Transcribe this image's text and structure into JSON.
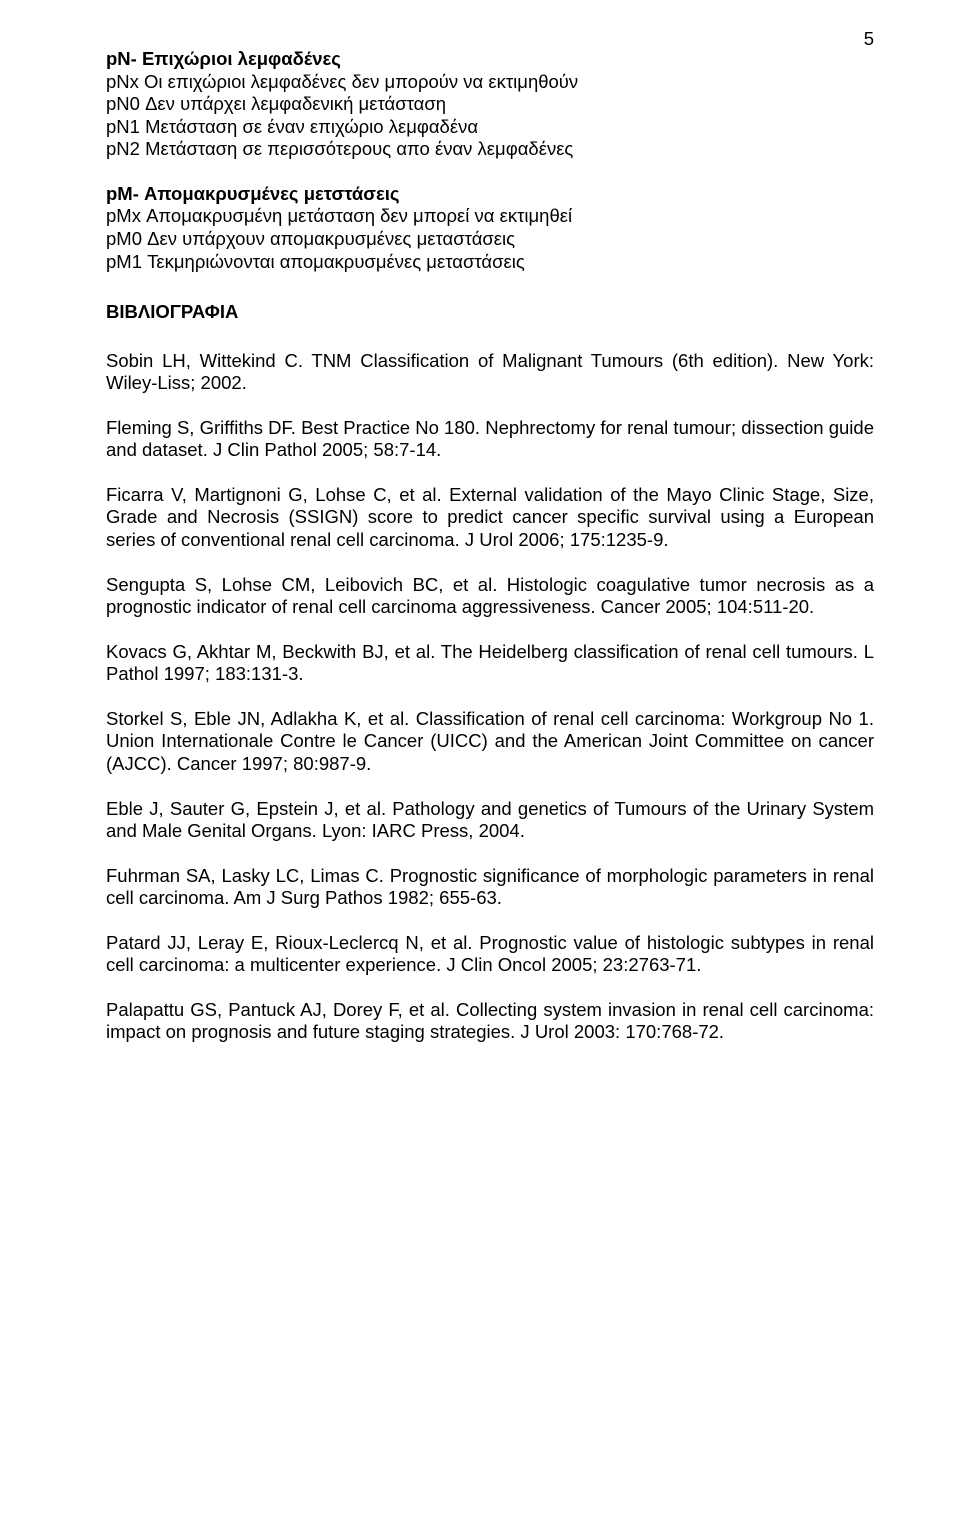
{
  "page_number": "5",
  "pn_heading": "pN- Επιχώριοι λεμφαδένες",
  "pn_lines": [
    "pNx Οι επιχώριοι λεμφαδένες δεν μπορούν να εκτιμηθούν",
    "pN0 Δεν υπάρχει λεμφαδενική μετάσταση",
    "pN1 Μετάσταση σε έναν επιχώριο λεμφαδένα",
    "pN2 Μετάσταση σε περισσότερους απο έναν λεμφαδένες"
  ],
  "pm_heading": "pM- Απομακρυσμένες μετστάσεις",
  "pm_lines": [
    "pMx Απομακρυσμένη μετάσταση δεν μπορεί να εκτιμηθεί",
    "pM0 Δεν υπάρχουν απομακρυσμένες μεταστάσεις",
    "pM1 Τεκμηριώνονται απομακρυσμένες μεταστάσεις"
  ],
  "biblio_heading": "ΒΙΒΛΙΟΓΡΑΦΙΑ",
  "refs": [
    "Sobin LH, Wittekind C. TNM Classification of Malignant Tumours (6th edition). New York: Wiley-Liss; 2002.",
    "Fleming S, Griffiths DF. Best Practice No 180. Nephrectomy for renal tumour; dissection guide and dataset. J Clin Pathol 2005; 58:7-14.",
    "Ficarra V, Martignoni G, Lohse C, et al. External validation of the Mayo Clinic Stage, Size, Grade and Necrosis (SSIGN) score to predict cancer specific survival using a European series of conventional renal cell carcinoma. J Urol 2006; 175:1235-9.",
    "Sengupta S, Lohse CM, Leibovich BC, et al. Histologic coagulative tumor necrosis as a prognostic indicator of renal cell carcinoma aggressiveness. Cancer 2005; 104:511-20.",
    "Kovacs G, Akhtar M, Beckwith BJ, et al. The Heidelberg classification of renal cell tumours. L Pathol 1997; 183:131-3.",
    "Storkel S, Eble JN, Adlakha K, et al. Classification of renal cell carcinoma: Workgroup No 1. Union Internationale Contre le Cancer (UICC) and the American Joint Committee on cancer (AJCC). Cancer 1997; 80:987-9.",
    "Eble J, Sauter G, Epstein J, et al. Pathology and genetics of Tumours of the Urinary System and Male Genital Organs. Lyon: IARC Press, 2004.",
    "Fuhrman SA, Lasky LC, Limas C. Prognostic significance of morphologic parameters in renal cell carcinoma. Am J Surg Pathos 1982; 655-63.",
    "Patard JJ, Leray E, Rioux-Leclercq N, et al. Prognostic value of histologic subtypes in renal cell carcinoma: a multicenter experience. J Clin Oncol 2005; 23:2763-71.",
    "Palapattu GS, Pantuck AJ, Dorey F, et al. Collecting system invasion in renal cell carcinoma: impact on prognosis and future staging strategies. J Urol 2003: 170:768-72."
  ]
}
